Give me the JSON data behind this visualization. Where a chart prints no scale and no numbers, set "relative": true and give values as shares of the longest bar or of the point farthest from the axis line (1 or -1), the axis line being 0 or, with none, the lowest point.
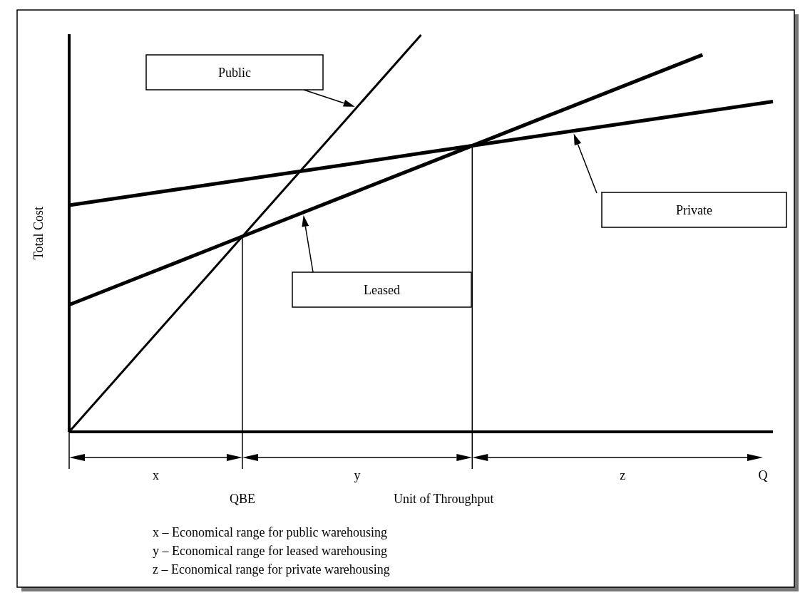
{
  "chart_data": {
    "type": "line",
    "relative": true,
    "xlabel": "Unit of Throughput",
    "ylabel": "Total Cost",
    "categories": [
      null,
      null,
      null,
      null,
      null,
      null,
      null,
      null,
      null,
      null,
      null
    ],
    "series": [
      {
        "name": "Public",
        "color": "#000000",
        "values": [
          0,
          0.2,
          0.4,
          0.6,
          0.8,
          1,
          null,
          null,
          null,
          null,
          null
        ]
      },
      {
        "name": "Private",
        "color": "#000000",
        "values": [
          0.571,
          0.597,
          0.623,
          0.649,
          0.675,
          0.702,
          0.728,
          0.754,
          0.78,
          0.806,
          0.832
        ]
      },
      {
        "name": "Leased",
        "color": "#000000",
        "values": [
          0.32,
          0.39,
          0.46,
          0.53,
          0.6,
          0.67,
          0.74,
          0.81,
          0.88,
          0.95,
          null
        ]
      }
    ],
    "annotations": [
      "x",
      "y",
      "z",
      "Q",
      "QBE",
      "x – Economical range for public warehousing",
      "y – Economical range for leased warehousing",
      "z – Economical range for private warehousing"
    ]
  }
}
